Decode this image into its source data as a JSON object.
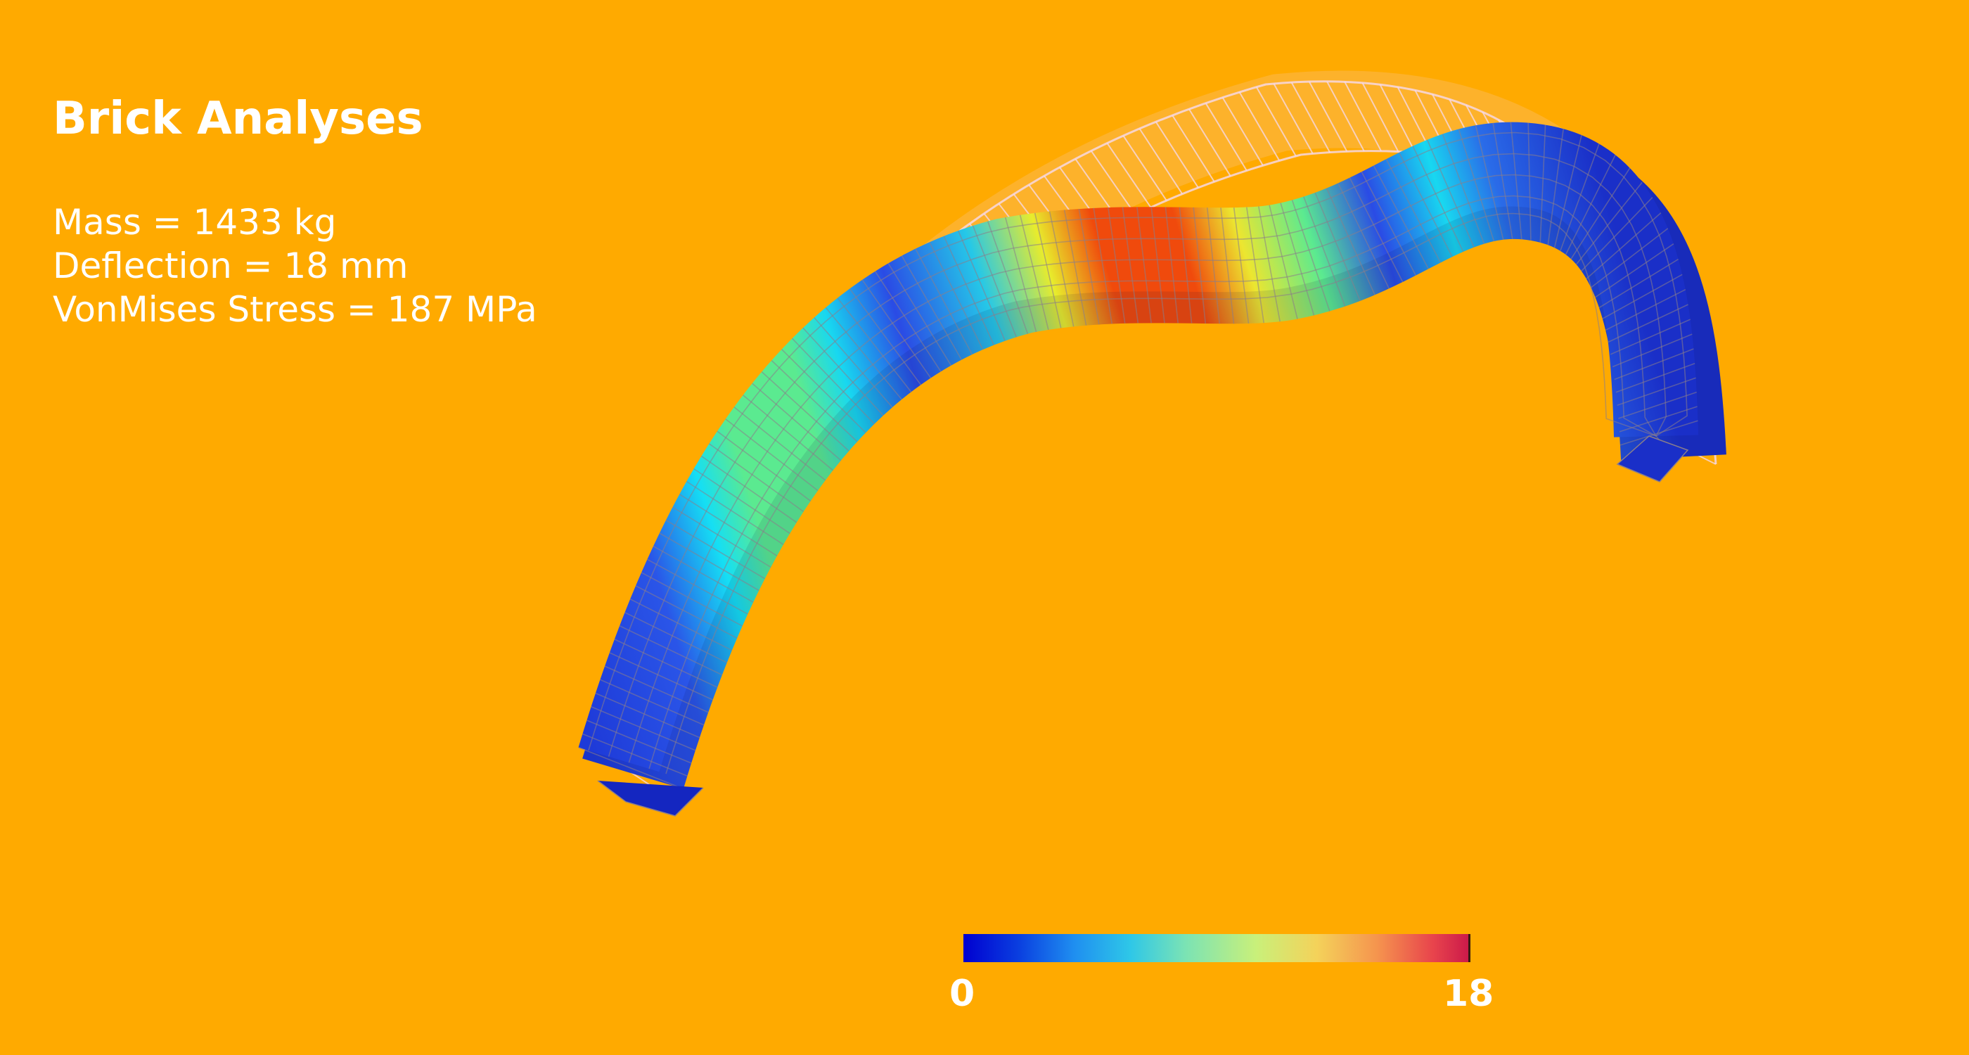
{
  "title": "Brick Analyses",
  "stats": {
    "mass": "Mass = 1433 kg",
    "deflection": "Deflection = 18 mm",
    "stress": "VonMises Stress = 187 MPa"
  },
  "colorbar": {
    "min_label": "0",
    "max_label": "18",
    "colors": [
      "#0000D0",
      "#0A3FE0",
      "#1F8FF0",
      "#2EC7E8",
      "#7BE3B4",
      "#C9F07A",
      "#F4D25A",
      "#F5944E",
      "#E8444C",
      "#CC1A4A"
    ]
  },
  "colors": {
    "background": "#FFAA00",
    "text": "#FFFFFF",
    "wireframe": "#F6D9EE",
    "mesh_line": "#8A7E8A"
  }
}
